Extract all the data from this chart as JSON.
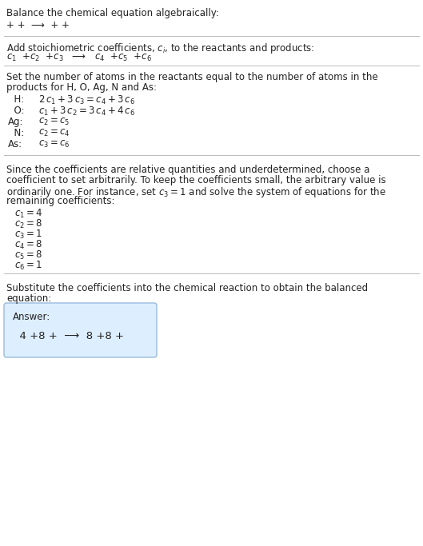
{
  "bg_color": "#ffffff",
  "text_color": "#222222",
  "title": "Balance the chemical equation algebraically:",
  "line1": "+ +  ⟶  + +",
  "section1_title": "Add stoichiometric coefficients, $c_i$, to the reactants and products:",
  "section1_eq": "$c_1$  +$c_2$  +$c_3$   ⟶   $c_4$  +$c_5$  +$c_6$",
  "section2_title_l1": "Set the number of atoms in the reactants equal to the number of atoms in the",
  "section2_title_l2": "products for H, O, Ag, N and As:",
  "equations": [
    [
      "  H:",
      "$2\\,c_1 + 3\\,c_3 = c_4 + 3\\,c_6$"
    ],
    [
      "  O:",
      "$c_1 + 3\\,c_2 = 3\\,c_4 + 4\\,c_6$"
    ],
    [
      "Ag:",
      "$c_2 = c_5$"
    ],
    [
      "  N:",
      "$c_2 = c_4$"
    ],
    [
      "As:",
      "$c_3 = c_6$"
    ]
  ],
  "section3_l1": "Since the coefficients are relative quantities and underdetermined, choose a",
  "section3_l2": "coefficient to set arbitrarily. To keep the coefficients small, the arbitrary value is",
  "section3_l3": "ordinarily one. For instance, set $c_3 = 1$ and solve the system of equations for the",
  "section3_l4": "remaining coefficients:",
  "coeffs": [
    "$c_1 = 4$",
    "$c_2 = 8$",
    "$c_3 = 1$",
    "$c_4 = 8$",
    "$c_5 = 8$",
    "$c_6 = 1$"
  ],
  "section4_l1": "Substitute the coefficients into the chemical reaction to obtain the balanced",
  "section4_l2": "equation:",
  "answer_label": "Answer:",
  "answer_eq": "  4 +8 +  ⟶  8 +8 +",
  "answer_box_color": "#ddeeff",
  "answer_box_edge": "#99bbdd",
  "sep_line_color": "#bbbbbb",
  "font_size": 8.5
}
